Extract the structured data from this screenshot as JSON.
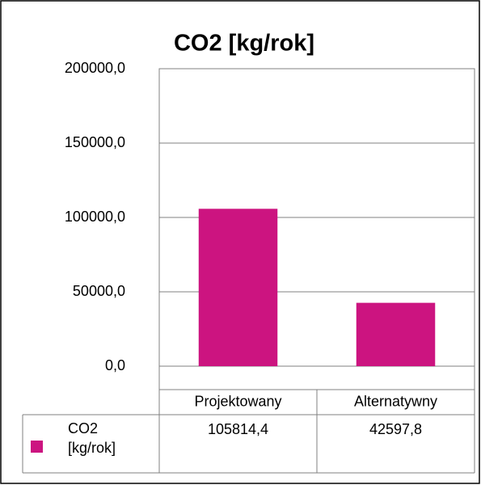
{
  "chart_data": {
    "type": "bar",
    "title": "CO2 [kg/rok]",
    "categories": [
      "Projektowany",
      "Alternatywny"
    ],
    "series": [
      {
        "name": "CO2 [kg/rok]",
        "color": "#cc1480",
        "values": [
          105814.4,
          42597.8
        ],
        "value_labels": [
          "105814,4",
          "42597,8"
        ]
      }
    ],
    "ylim": [
      0,
      200000
    ],
    "yticks": [
      {
        "value": 0,
        "label": "0,0"
      },
      {
        "value": 50000,
        "label": "50000,0"
      },
      {
        "value": 100000,
        "label": "100000,0"
      },
      {
        "value": 150000,
        "label": "150000,0"
      },
      {
        "value": 200000,
        "label": "200000,0"
      }
    ],
    "grid": true
  }
}
